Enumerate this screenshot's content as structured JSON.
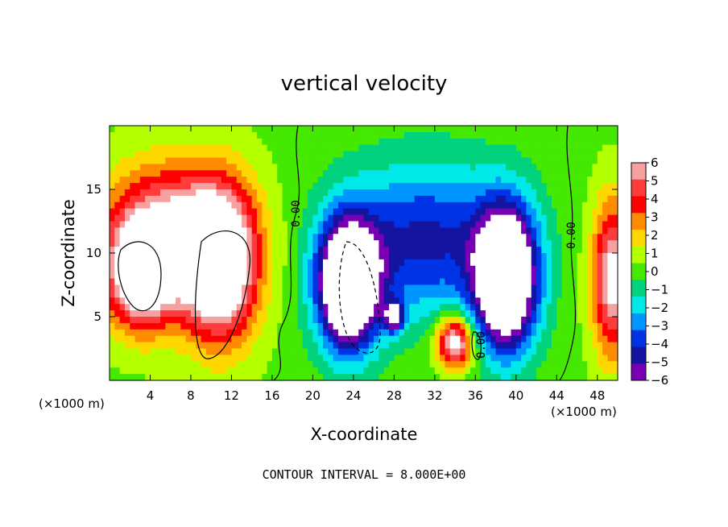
{
  "chart_data": {
    "type": "heatmap",
    "title": "vertical velocity",
    "xlabel": "X-coordinate",
    "ylabel": "Z-coordinate",
    "x_unit": "(×1000 m)",
    "x_unit_right": "(×1000 m)",
    "footer": "CONTOUR INTERVAL = 8.000E+00",
    "xlim": [
      0,
      50
    ],
    "ylim": [
      0,
      20
    ],
    "xticks": [
      4,
      8,
      12,
      16,
      20,
      24,
      28,
      32,
      36,
      40,
      44,
      48
    ],
    "xtick_labels": [
      "4",
      "8",
      "12",
      "16",
      "20",
      "24",
      "28",
      "32",
      "36",
      "40",
      "44",
      "48"
    ],
    "yticks": [
      5,
      10,
      15
    ],
    "ytick_labels": [
      "5",
      "10",
      "15"
    ],
    "colorbar": {
      "levels": [
        6,
        5,
        4,
        3,
        2,
        1,
        0,
        -1,
        -2,
        -3,
        -4,
        -5,
        -6
      ],
      "labels": [
        "6",
        "5",
        "4",
        "3",
        "2",
        "1",
        "0",
        "−1",
        "−2",
        "−3",
        "−4",
        "−5",
        "−6"
      ],
      "colors": [
        "#f7a0a0",
        "#ff3c3c",
        "#ff0000",
        "#ff8c00",
        "#ffd700",
        "#b4ff00",
        "#44e800",
        "#00d27e",
        "#00e8e8",
        "#0096ff",
        "#0032e6",
        "#1414a0",
        "#7800b4"
      ]
    },
    "contour_labels": [
      "0.00",
      "0.00",
      "0.00"
    ],
    "fields": [
      {
        "kind": "updraft",
        "x": 6,
        "z": 11,
        "sx": 6.5,
        "sz": 5.5,
        "amp": 8
      },
      {
        "kind": "updraft",
        "x": 11,
        "z": 9,
        "sx": 3.5,
        "sz": 6,
        "amp": 8
      },
      {
        "kind": "updraft",
        "x": 3,
        "z": 8,
        "sx": 3,
        "sz": 4,
        "amp": 6
      },
      {
        "kind": "updraft",
        "x": 49.5,
        "z": 8,
        "sx": 2,
        "sz": 6,
        "amp": 7
      },
      {
        "kind": "updraft",
        "x": 34,
        "z": 3,
        "sx": 1.8,
        "sz": 2,
        "amp": 8
      },
      {
        "kind": "downdraft",
        "x": 23.5,
        "z": 7.5,
        "sx": 3,
        "sz": 5,
        "amp": -12
      },
      {
        "kind": "downdraft",
        "x": 39,
        "z": 8,
        "sx": 3,
        "sz": 5.5,
        "amp": -12
      },
      {
        "kind": "downdraft",
        "x": 31,
        "z": 11,
        "sx": 8,
        "sz": 6,
        "amp": -5
      },
      {
        "kind": "downdraft",
        "x": 28,
        "z": 5,
        "sx": 1,
        "sz": 1.2,
        "amp": -6
      }
    ]
  }
}
